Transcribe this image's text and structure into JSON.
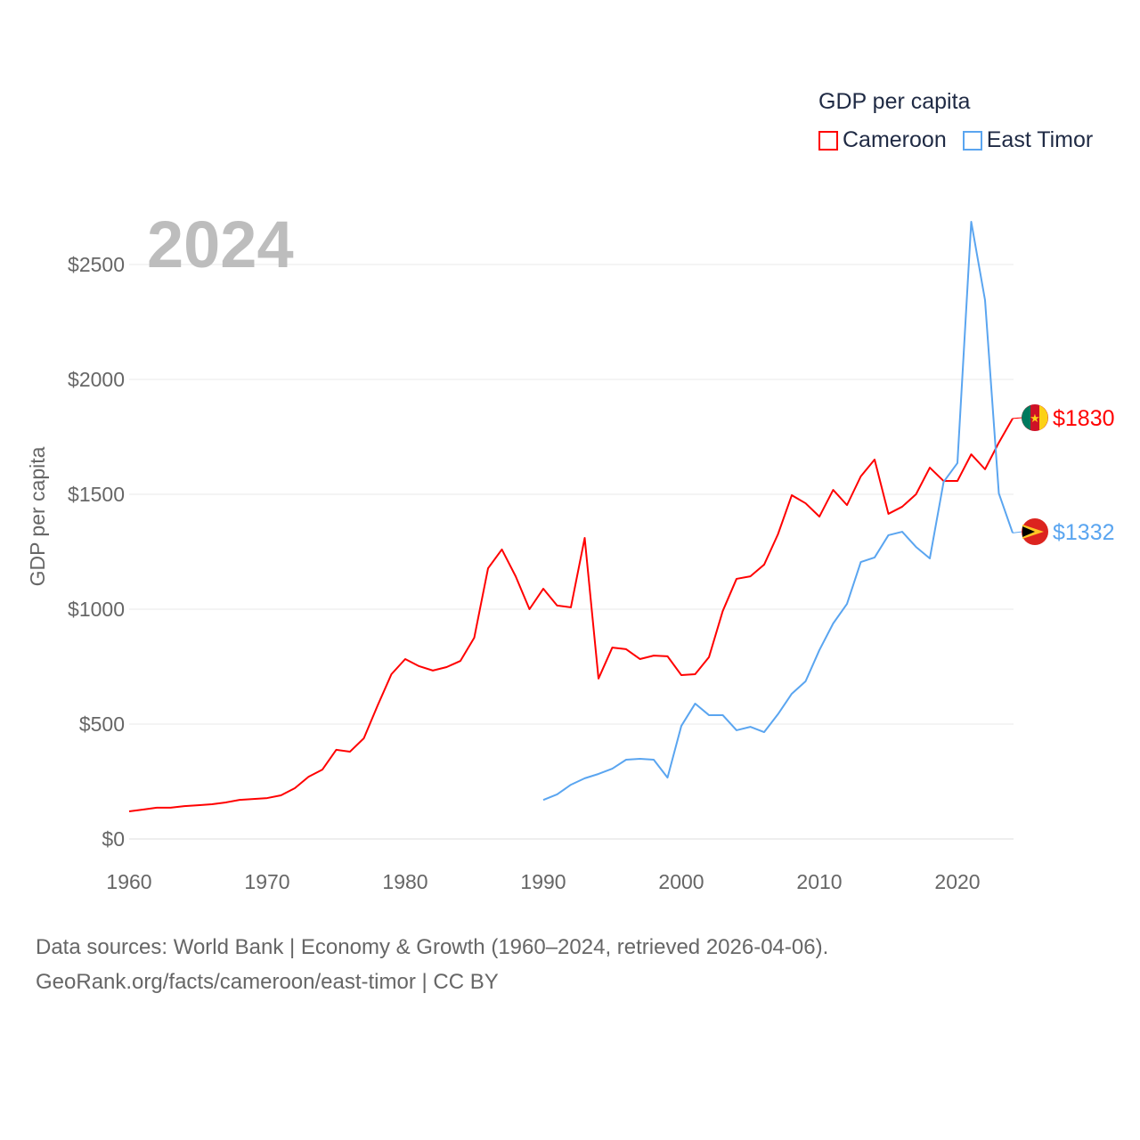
{
  "chart_data": {
    "type": "line",
    "title": "GDP per capita",
    "year_label": "2024",
    "ylabel": "GDP per capita",
    "xlabel": "",
    "xlim": [
      1960,
      2024
    ],
    "ylim": [
      0,
      2700
    ],
    "x_ticks": [
      "1960",
      "1970",
      "1980",
      "1990",
      "2000",
      "2010",
      "2020"
    ],
    "y_ticks": [
      {
        "v": 0,
        "label": "$0"
      },
      {
        "v": 500,
        "label": "$500"
      },
      {
        "v": 1000,
        "label": "$1000"
      },
      {
        "v": 1500,
        "label": "$1500"
      },
      {
        "v": 2000,
        "label": "$2000"
      },
      {
        "v": 2500,
        "label": "$2500"
      }
    ],
    "grid": true,
    "legend_position": "top-right",
    "series": [
      {
        "name": "Cameroon",
        "color": "#ff0000",
        "end_label": "$1830",
        "start_year": 1960,
        "values": [
          120,
          128,
          136,
          136,
          143,
          147,
          151,
          159,
          170,
          174,
          178,
          190,
          221,
          271,
          302,
          388,
          380,
          438,
          581,
          717,
          783,
          752,
          733,
          748,
          775,
          876,
          1178,
          1260,
          1143,
          1000,
          1089,
          1016,
          1008,
          1310,
          698,
          833,
          826,
          783,
          798,
          795,
          713,
          717,
          791,
          992,
          1132,
          1143,
          1194,
          1326,
          1496,
          1461,
          1403,
          1519,
          1453,
          1578,
          1651,
          1415,
          1446,
          1500,
          1616,
          1558,
          1558,
          1674,
          1609,
          1725,
          1830
        ]
      },
      {
        "name": "East Timor",
        "color": "#5aa5f0",
        "end_label": "$1332",
        "start_year": 1990,
        "values": [
          170,
          194,
          236,
          264,
          283,
          306,
          345,
          349,
          345,
          267,
          492,
          589,
          539,
          539,
          473,
          488,
          465,
          543,
          632,
          686,
          822,
          938,
          1023,
          1205,
          1225,
          1322,
          1337,
          1271,
          1221,
          1554,
          1636,
          2686,
          2345,
          1504,
          1332
        ]
      }
    ]
  },
  "source": {
    "line1": "Data sources: World Bank | Economy & Growth (1960–2024, retrieved 2026-04-06).",
    "line2": "GeoRank.org/facts/cameroon/east-timor | CC BY"
  }
}
